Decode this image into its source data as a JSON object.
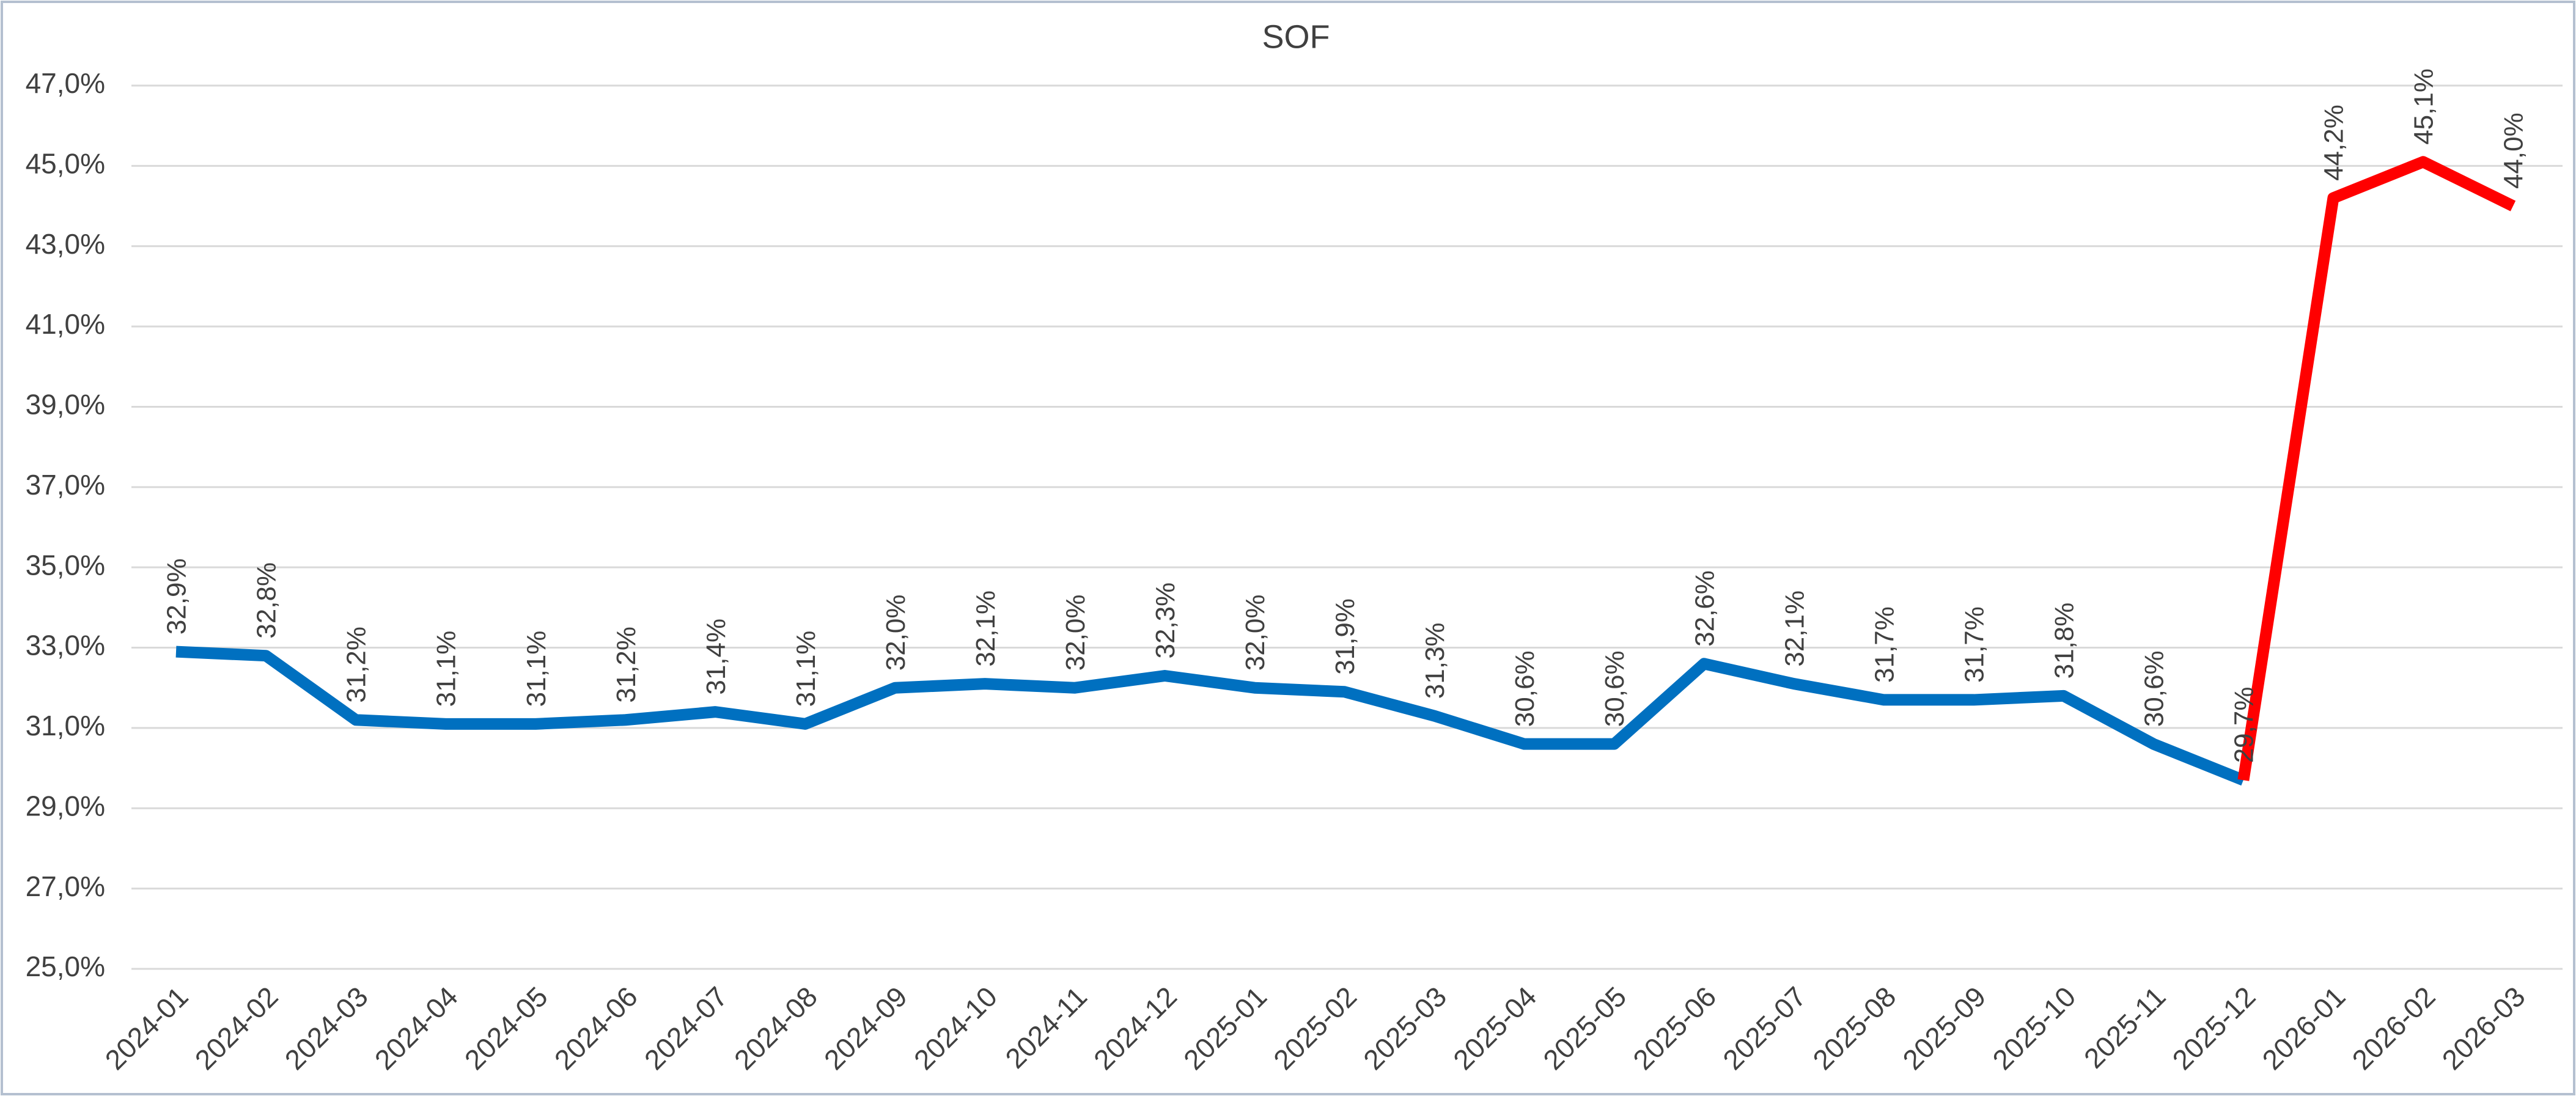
{
  "chart_data": {
    "type": "line",
    "title": "SOF",
    "categories": [
      "2024-01",
      "2024-02",
      "2024-03",
      "2024-04",
      "2024-05",
      "2024-06",
      "2024-07",
      "2024-08",
      "2024-09",
      "2024-10",
      "2024-11",
      "2024-12",
      "2025-01",
      "2025-02",
      "2025-03",
      "2025-04",
      "2025-05",
      "2025-06",
      "2025-07",
      "2025-08",
      "2025-09",
      "2025-10",
      "2025-11",
      "2025-12",
      "2026-01",
      "2026-02",
      "2026-03"
    ],
    "series": [
      {
        "colors": [
          "#0070c0",
          "#0070c0",
          "#0070c0",
          "#0070c0",
          "#0070c0",
          "#0070c0",
          "#0070c0",
          "#0070c0",
          "#0070c0",
          "#0070c0",
          "#0070c0",
          "#0070c0",
          "#0070c0",
          "#0070c0",
          "#0070c0",
          "#0070c0",
          "#0070c0",
          "#0070c0",
          "#0070c0",
          "#0070c0",
          "#0070c0",
          "#0070c0",
          "#0070c0",
          "#0070c0",
          "#ff0000",
          "#ff0000",
          "#ff0000"
        ],
        "values": [
          32.9,
          32.8,
          31.2,
          31.1,
          31.1,
          31.2,
          31.4,
          31.1,
          32.0,
          32.1,
          32.0,
          32.3,
          32.0,
          31.9,
          31.3,
          30.6,
          30.6,
          32.6,
          32.1,
          31.7,
          31.7,
          31.8,
          30.6,
          29.7,
          44.2,
          45.1,
          44.0
        ],
        "value_labels": [
          "32,9%",
          "32,8%",
          "31,2%",
          "31,1%",
          "31,1%",
          "31,2%",
          "31,4%",
          "31,1%",
          "32,0%",
          "32,1%",
          "32,0%",
          "32,3%",
          "32,0%",
          "31,9%",
          "31,3%",
          "30,6%",
          "30,6%",
          "32,6%",
          "32,1%",
          "31,7%",
          "31,7%",
          "31,8%",
          "30,6%",
          "29,7%",
          "44,2%",
          "45,1%",
          "44,0%"
        ]
      }
    ],
    "ylim": [
      25,
      47
    ],
    "yticks": [
      {
        "value": 25,
        "label": "25,0%"
      },
      {
        "value": 27,
        "label": "27,0%"
      },
      {
        "value": 29,
        "label": "29,0%"
      },
      {
        "value": 31,
        "label": "31,0%"
      },
      {
        "value": 33,
        "label": "33,0%"
      },
      {
        "value": 35,
        "label": "35,0%"
      },
      {
        "value": 37,
        "label": "37,0%"
      },
      {
        "value": 39,
        "label": "39,0%"
      },
      {
        "value": 41,
        "label": "41,0%"
      },
      {
        "value": 43,
        "label": "43,0%"
      },
      {
        "value": 45,
        "label": "45,0%"
      },
      {
        "value": 47,
        "label": "47,0%"
      }
    ],
    "grid": true
  }
}
